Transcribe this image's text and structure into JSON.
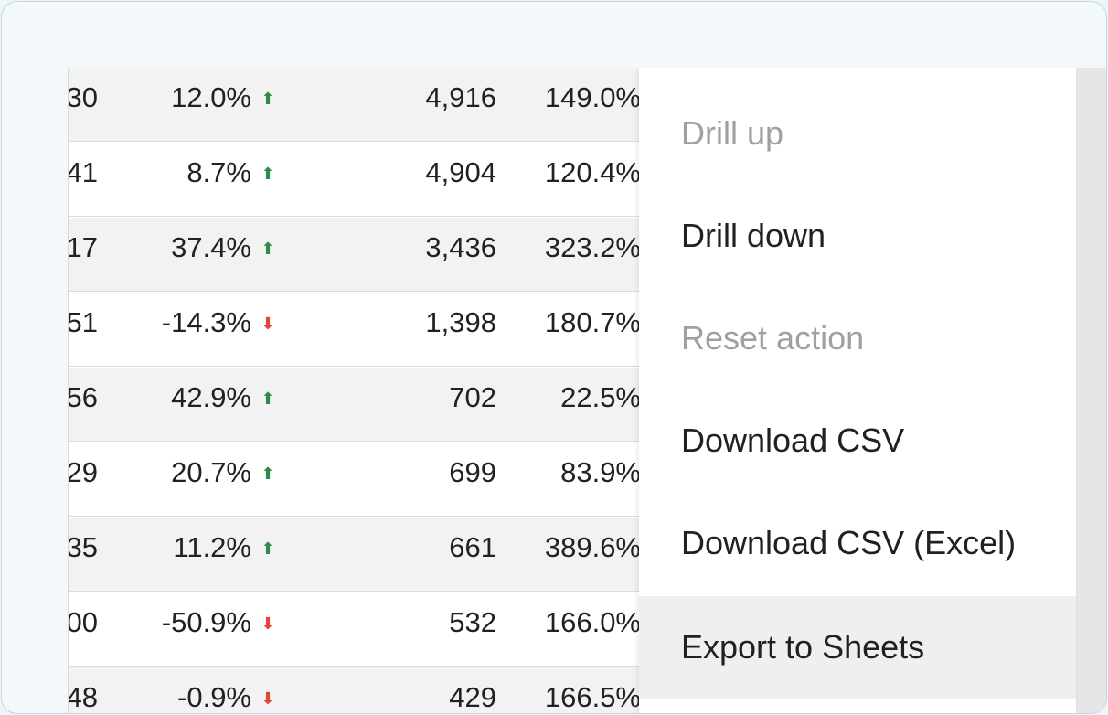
{
  "table": {
    "rows": [
      {
        "first": "30",
        "pct": "12.0%",
        "dir": "up",
        "count": "4,916",
        "share": "149.0%"
      },
      {
        "first": "41",
        "pct": "8.7%",
        "dir": "up",
        "count": "4,904",
        "share": "120.4%"
      },
      {
        "first": "17",
        "pct": "37.4%",
        "dir": "up",
        "count": "3,436",
        "share": "323.2%"
      },
      {
        "first": "51",
        "pct": "-14.3%",
        "dir": "down",
        "count": "1,398",
        "share": "180.7%"
      },
      {
        "first": "56",
        "pct": "42.9%",
        "dir": "up",
        "count": "702",
        "share": "22.5%"
      },
      {
        "first": "29",
        "pct": "20.7%",
        "dir": "up",
        "count": "699",
        "share": "83.9%"
      },
      {
        "first": "35",
        "pct": "11.2%",
        "dir": "up",
        "count": "661",
        "share": "389.6%"
      },
      {
        "first": "00",
        "pct": "-50.9%",
        "dir": "down",
        "count": "532",
        "share": "166.0%"
      },
      {
        "first": "48",
        "pct": "-0.9%",
        "dir": "down",
        "count": "429",
        "share": "166.5%"
      }
    ],
    "arrow_glyphs": {
      "up": "⬆",
      "down": "⬇"
    },
    "colors": {
      "up": "#2e8b47",
      "down": "#e0473a"
    }
  },
  "context_menu": {
    "items": [
      {
        "label": "Drill up",
        "state": "disabled"
      },
      {
        "label": "Drill down",
        "state": "enabled"
      },
      {
        "label": "Reset action",
        "state": "disabled"
      },
      {
        "label": "Download CSV",
        "state": "enabled"
      },
      {
        "label": "Download CSV (Excel)",
        "state": "enabled"
      },
      {
        "label": "Export to Sheets",
        "state": "hovered"
      }
    ]
  }
}
